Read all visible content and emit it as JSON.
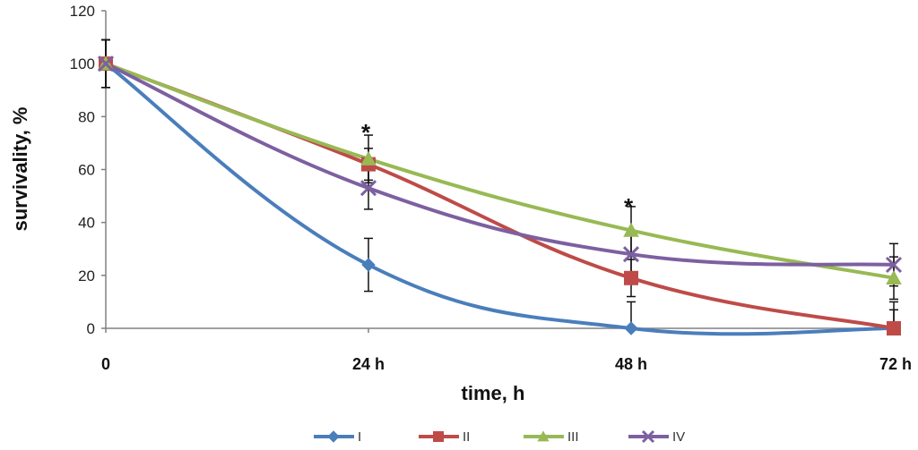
{
  "chart_data": {
    "type": "line",
    "xlabel": "time, h",
    "ylabel": "survivality, %",
    "categories": [
      "0",
      "24 h",
      "48 h",
      "72 h"
    ],
    "ylim": [
      0,
      120
    ],
    "yticks": [
      0,
      20,
      40,
      60,
      80,
      100,
      120
    ],
    "grid": false,
    "legend": "bottom",
    "series": [
      {
        "name": "I",
        "values": [
          100,
          24,
          0,
          0
        ],
        "error": [
          9,
          10,
          10,
          10
        ],
        "color": "#4a7ebb",
        "marker": "diamond"
      },
      {
        "name": "II",
        "values": [
          100,
          62,
          19,
          0
        ],
        "error": [
          9,
          6,
          7,
          7
        ],
        "color": "#be4b48",
        "marker": "square"
      },
      {
        "name": "III",
        "values": [
          100,
          64,
          37,
          19
        ],
        "error": [
          9,
          9,
          9,
          8
        ],
        "color": "#98b954",
        "marker": "triangle"
      },
      {
        "name": "IV",
        "values": [
          100,
          53,
          28,
          24
        ],
        "error": [
          9,
          8,
          8,
          8
        ],
        "color": "#7d60a0",
        "marker": "x"
      }
    ],
    "annotations": [
      {
        "text": "*",
        "x": "24 h",
        "y": 75
      },
      {
        "text": "*",
        "x": "48 h",
        "y": 47
      }
    ]
  }
}
